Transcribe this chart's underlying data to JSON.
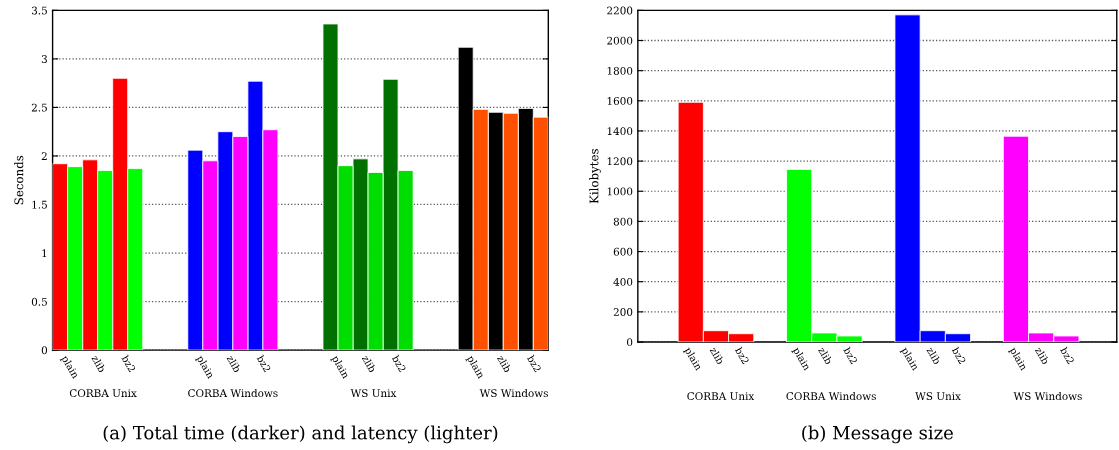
{
  "chart_data": [
    {
      "type": "bar",
      "title": "(a) Total time (darker) and latency (lighter)",
      "ylabel": "Seconds",
      "categories": [
        "plain",
        "zlib",
        "bz2",
        "plain",
        "zlib",
        "bz2",
        "plain",
        "zlib",
        "bz2",
        "plain",
        "zlib",
        "bz2"
      ],
      "series": [
        {
          "colors": [
            "#ff0000",
            "#ff0000",
            "#ff0000",
            "#0000ff",
            "#0000ff",
            "#0000ff",
            "#007000",
            "#007000",
            "#007000",
            "#000000",
            "#000000",
            "#000000"
          ],
          "values": [
            1.92,
            1.96,
            2.8,
            2.06,
            2.25,
            2.77,
            3.36,
            1.97,
            2.79,
            3.12,
            2.45,
            2.49
          ]
        },
        {
          "colors": [
            "#00ff00",
            "#00ff00",
            "#00ff00",
            "#ff00ff",
            "#ff00ff",
            "#ff00ff",
            "#00dd00",
            "#00dd00",
            "#00dd00",
            "#ff5000",
            "#ff5000",
            "#ff5000"
          ],
          "values": [
            1.89,
            1.85,
            1.87,
            1.95,
            2.2,
            2.27,
            1.9,
            1.83,
            1.85,
            2.48,
            2.44,
            2.4
          ]
        }
      ],
      "ylim": [
        0,
        3.5
      ],
      "yticks": [
        0,
        0.5,
        1,
        1.5,
        2,
        2.5,
        3,
        3.5
      ],
      "grid": "y",
      "annotations": [
        "CORBA Unix",
        "CORBA Windows",
        "WS Unix",
        "WS Windows"
      ]
    },
    {
      "type": "bar",
      "title": "(b) Message size",
      "ylabel": "Kilobytes",
      "categories": [
        "plain",
        "zlib",
        "bz2",
        "plain",
        "zlib",
        "bz2",
        "plain",
        "zlib",
        "bz2",
        "plain",
        "zlib",
        "bz2"
      ],
      "series": [
        {
          "colors": [
            "#ff0000",
            "#ff0000",
            "#ff0000",
            "#00ff00",
            "#00ff00",
            "#00ff00",
            "#0000ff",
            "#0000ff",
            "#0000ff",
            "#ff00ff",
            "#ff00ff",
            "#ff00ff"
          ],
          "values": [
            1590,
            75,
            55,
            1145,
            60,
            40,
            2170,
            75,
            55,
            1365,
            60,
            40
          ]
        }
      ],
      "ylim": [
        0,
        2200
      ],
      "yticks": [
        0,
        200,
        400,
        600,
        800,
        1000,
        1200,
        1400,
        1600,
        1800,
        2000,
        2200
      ],
      "grid": "y",
      "annotations": [
        "CORBA Unix",
        "CORBA Windows",
        "WS Unix",
        "WS Windows"
      ]
    }
  ]
}
